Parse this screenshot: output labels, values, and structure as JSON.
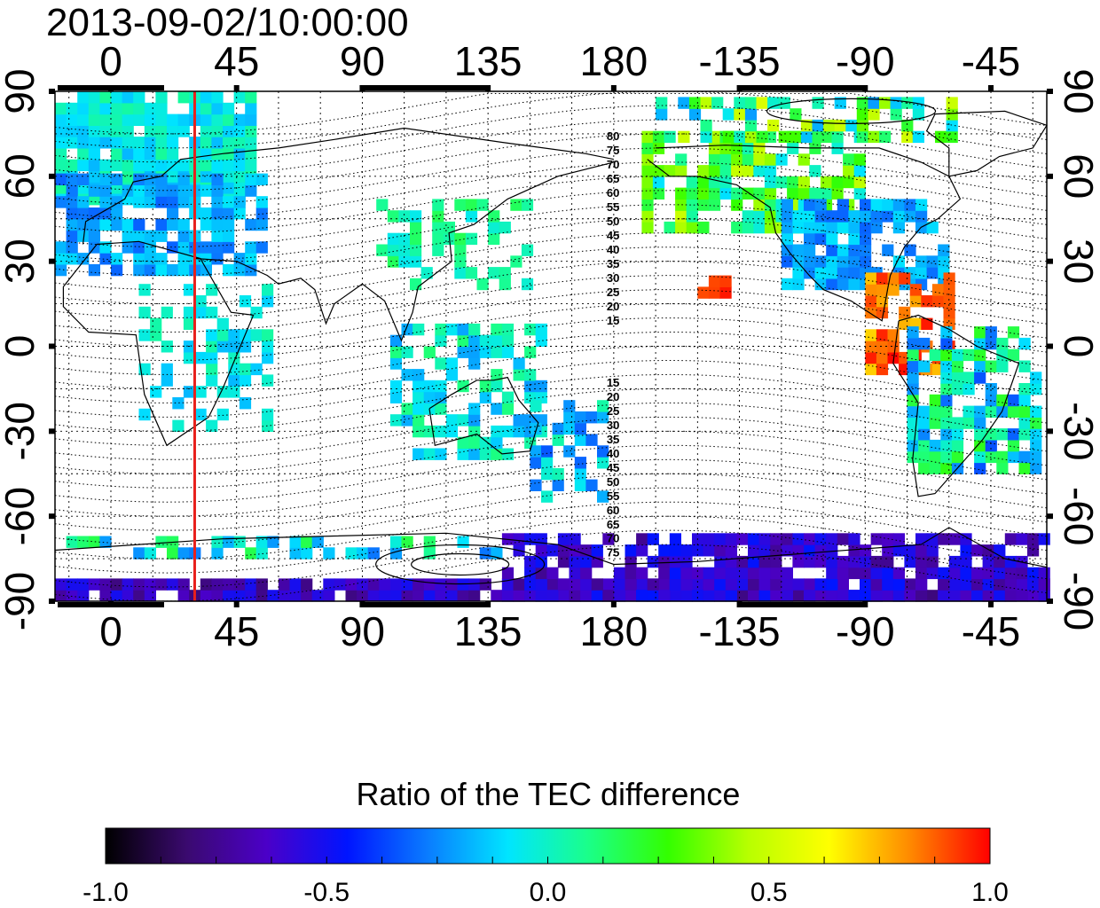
{
  "title": "2013-09-02/10:00:00",
  "map": {
    "lon_ticks_top": [
      "0",
      "45",
      "90",
      "135",
      "180",
      "-135",
      "-90",
      "-45"
    ],
    "lon_ticks_bottom": [
      "0",
      "45",
      "90",
      "135",
      "180",
      "-135",
      "-90",
      "-45"
    ],
    "lat_ticks_left": [
      "90",
      "60",
      "30",
      "0",
      "-30",
      "-60",
      "-90"
    ],
    "lat_ticks_right": [
      "90",
      "60",
      "30",
      "0",
      "-30",
      "-60",
      "-90"
    ],
    "lon_tick_values": [
      0,
      45,
      90,
      135,
      180,
      225,
      270,
      315
    ],
    "lat_tick_values": [
      90,
      60,
      30,
      0,
      -30,
      -60,
      -90
    ],
    "lon_range": [
      -20,
      335
    ],
    "lat_range": [
      -90,
      90
    ],
    "grid": true,
    "terminator_longitude": 30,
    "terminator_color": "#e8201c",
    "contour_labels_north": [
      "80",
      "75",
      "70",
      "65",
      "60",
      "55",
      "50",
      "45",
      "40",
      "35",
      "30",
      "25",
      "20",
      "15"
    ],
    "contour_labels_south": [
      "15",
      "20",
      "25",
      "30",
      "35",
      "40",
      "45",
      "50",
      "55",
      "60",
      "65",
      "70",
      "75"
    ]
  },
  "colorbar": {
    "title": "Ratio of the TEC difference",
    "tick_labels": [
      "-1.0",
      "-0.5",
      "0.0",
      "0.5",
      "1.0"
    ],
    "tick_values": [
      -1.0,
      -0.5,
      0.0,
      0.5,
      1.0
    ],
    "range": [
      -1.0,
      1.0
    ],
    "colors": [
      "#000000",
      "#3a0a6e",
      "#4b00c8",
      "#0014ff",
      "#0a7cff",
      "#00e5ff",
      "#1aff8a",
      "#33ff00",
      "#b8ff00",
      "#ffff00",
      "#ff8a00",
      "#ff0000"
    ]
  }
}
